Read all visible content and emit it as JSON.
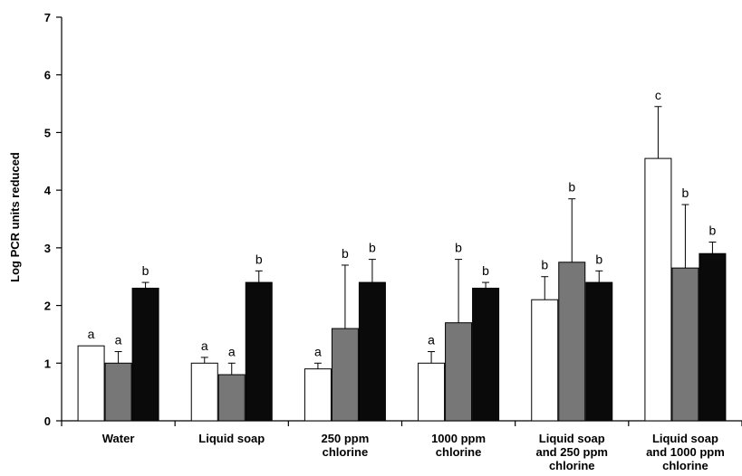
{
  "chart_data": {
    "type": "bar",
    "ylabel": "Log PCR units reduced",
    "xlabel": "",
    "ylim": [
      0,
      7
    ],
    "yticks": [
      "0",
      "1",
      "2",
      "3",
      "4",
      "5",
      "6",
      "7"
    ],
    "grid": false,
    "legend": "none",
    "categories": [
      [
        "Water"
      ],
      [
        "Liquid soap"
      ],
      [
        "250 ppm",
        "chlorine"
      ],
      [
        "1000 ppm",
        "chlorine"
      ],
      [
        "Liquid soap",
        "and 250 ppm",
        "chlorine"
      ],
      [
        "Liquid soap",
        "and 1000 ppm",
        "chlorine"
      ]
    ],
    "series": [
      {
        "fill": "#ffffff",
        "values": [
          1.3,
          1.0,
          0.9,
          1.0,
          2.1,
          4.55
        ],
        "errors": [
          0.0,
          0.1,
          0.1,
          0.2,
          0.4,
          0.9
        ],
        "labels": [
          "a",
          "a",
          "a",
          "a",
          "b",
          "c"
        ]
      },
      {
        "fill": "#777777",
        "values": [
          1.0,
          0.8,
          1.6,
          1.7,
          2.75,
          2.65
        ],
        "errors": [
          0.2,
          0.2,
          1.1,
          1.1,
          1.1,
          1.1
        ],
        "labels": [
          "a",
          "a",
          "b",
          "b",
          "b",
          "b"
        ]
      },
      {
        "fill": "#0a0a0a",
        "values": [
          2.3,
          2.4,
          2.4,
          2.3,
          2.4,
          2.9
        ],
        "errors": [
          0.1,
          0.2,
          0.4,
          0.1,
          0.2,
          0.2
        ],
        "labels": [
          "b",
          "b",
          "b",
          "b",
          "b",
          "b"
        ]
      }
    ]
  }
}
